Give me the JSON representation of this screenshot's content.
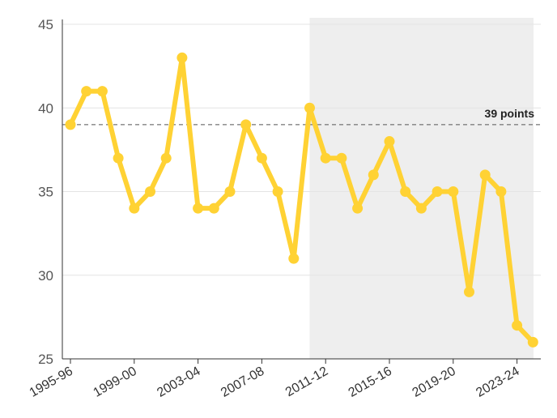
{
  "chart_data": {
    "type": "line",
    "title": "",
    "xlabel": "",
    "ylabel": "",
    "ylim": [
      25,
      45
    ],
    "y_ticks": [
      25,
      30,
      35,
      40,
      45
    ],
    "x_tick_labels": [
      "1995-96",
      "1999-00",
      "2003-04",
      "2007-08",
      "2011-12",
      "2015-16",
      "2019-20",
      "2023-24"
    ],
    "x": [
      "1995-96",
      "1996-97",
      "1997-98",
      "1998-99",
      "1999-00",
      "2000-01",
      "2001-02",
      "2002-03",
      "2003-04",
      "2004-05",
      "2005-06",
      "2006-07",
      "2007-08",
      "2008-09",
      "2009-10",
      "2010-11",
      "2011-12",
      "2012-13",
      "2013-14",
      "2014-15",
      "2015-16",
      "2016-17",
      "2017-18",
      "2018-19",
      "2019-20",
      "2020-21",
      "2021-22",
      "2022-23",
      "2023-24",
      "2024-25"
    ],
    "series": [
      {
        "values": [
          39,
          41,
          41,
          37,
          34,
          35,
          37,
          43,
          34,
          34,
          35,
          39,
          37,
          35,
          31,
          40,
          37,
          37,
          34,
          36,
          38,
          35,
          34,
          35,
          35,
          29,
          36,
          35,
          27,
          26
        ],
        "color": "#ffd234"
      }
    ],
    "reference_line": {
      "value": 39,
      "label": "39 points",
      "style": "dashed"
    },
    "shaded_region": {
      "from": "2010-11",
      "to": "2024-25",
      "color": "#eeeeee"
    },
    "grid": "horizontal"
  }
}
